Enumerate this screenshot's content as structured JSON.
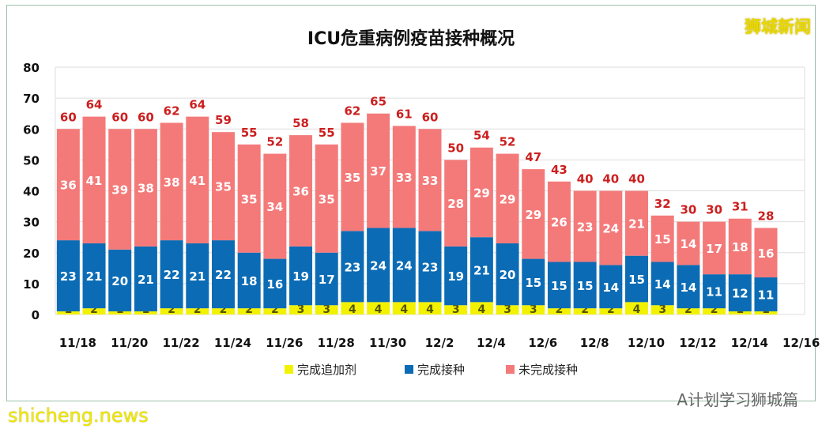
{
  "chart_data": {
    "type": "bar",
    "stacked": true,
    "title": "ICU危重病例疫苗接种概况",
    "categories": [
      "11/18",
      "11/19",
      "11/20",
      "11/21",
      "11/22",
      "11/23",
      "11/24",
      "11/25",
      "11/26",
      "11/27",
      "11/28",
      "11/29",
      "11/30",
      "12/1",
      "12/2",
      "12/3",
      "12/4",
      "12/5",
      "12/6",
      "12/7",
      "12/8",
      "12/9",
      "12/10",
      "12/11",
      "12/12",
      "12/13",
      "12/14",
      "12/15"
    ],
    "x_tick_labels": [
      "11/18",
      "11/20",
      "11/22",
      "11/24",
      "11/26",
      "11/28",
      "11/30",
      "12/2",
      "12/4",
      "12/6",
      "12/8",
      "12/10",
      "12/12",
      "12/14",
      "12/16"
    ],
    "series": [
      {
        "name": "完成追加剂",
        "color": "#f2f200",
        "values": [
          1,
          2,
          1,
          1,
          2,
          2,
          2,
          2,
          2,
          3,
          3,
          4,
          4,
          4,
          4,
          3,
          4,
          3,
          3,
          2,
          2,
          2,
          4,
          3,
          2,
          2,
          1,
          1
        ]
      },
      {
        "name": "完成接种",
        "color": "#0b6cb5",
        "values": [
          23,
          21,
          20,
          21,
          22,
          21,
          22,
          18,
          16,
          19,
          17,
          23,
          24,
          24,
          23,
          19,
          21,
          20,
          15,
          15,
          15,
          14,
          15,
          14,
          14,
          11,
          12,
          11
        ]
      },
      {
        "name": "未完成接种",
        "color": "#f47a7a",
        "values": [
          36,
          41,
          39,
          38,
          38,
          41,
          35,
          35,
          34,
          36,
          35,
          35,
          37,
          33,
          33,
          28,
          29,
          29,
          29,
          26,
          23,
          24,
          21,
          15,
          14,
          17,
          18,
          16
        ]
      }
    ],
    "totals": [
      60,
      64,
      60,
      60,
      62,
      64,
      59,
      55,
      52,
      58,
      55,
      62,
      65,
      61,
      60,
      50,
      54,
      52,
      47,
      43,
      40,
      40,
      40,
      32,
      30,
      30,
      31,
      28
    ],
    "ylim": [
      0,
      80
    ],
    "yticks": [
      0,
      10,
      20,
      30,
      40,
      50,
      60,
      70,
      80
    ],
    "grid": true,
    "legend_position": "bottom",
    "xlabel": "",
    "ylabel": ""
  },
  "watermarks": {
    "top_right": "狮城新闻",
    "bottom_right": "A计划学习狮城篇",
    "bottom_left": "shicheng.news"
  }
}
